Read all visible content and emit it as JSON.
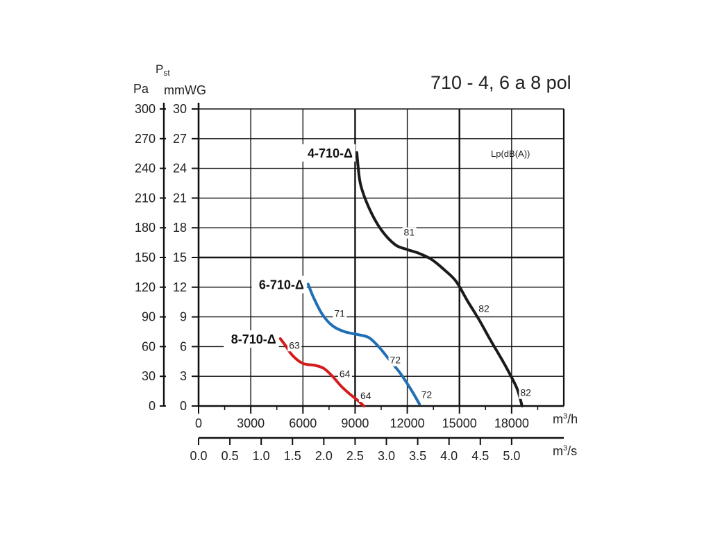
{
  "chart_data": {
    "type": "line",
    "title": "710 - 4, 6 a 8 pol",
    "y_axis": {
      "symbol": "P",
      "subscript": "st",
      "pa_label": "Pa",
      "mmwg_label": "mmWG",
      "pa_ticks": [
        "300",
        "270",
        "240",
        "210",
        "180",
        "150",
        "120",
        "90",
        "60",
        "30",
        "0"
      ],
      "mmwg_ticks": [
        "30",
        "27",
        "24",
        "21",
        "18",
        "15",
        "12",
        "9",
        "6",
        "3",
        "0"
      ],
      "ylim": [
        0,
        30
      ]
    },
    "x_axis": {
      "unit_base": "m",
      "unit_sup": "3",
      "unit_h_suffix": "/h",
      "unit_s_suffix": "/s",
      "ticks_h": [
        "0",
        "3000",
        "6000",
        "9000",
        "12000",
        "15000",
        "18000"
      ],
      "ticks_s": [
        "0.0",
        "0.5",
        "1.0",
        "1.5",
        "2.0",
        "2.5",
        "3.0",
        "3.5",
        "4.0",
        "4.5",
        "5.0"
      ],
      "xlim": [
        0,
        21000
      ]
    },
    "noise_label": "Lp(dB(A))",
    "grid": true,
    "series": [
      {
        "name": "4-710-Δ",
        "color": "#1a1a1a",
        "points": [
          [
            9100,
            25.6
          ],
          [
            9300,
            22.5
          ],
          [
            9800,
            20.0
          ],
          [
            10500,
            17.8
          ],
          [
            11300,
            16.3
          ],
          [
            12000,
            15.8
          ],
          [
            12700,
            15.4
          ],
          [
            13400,
            14.8
          ],
          [
            14100,
            13.8
          ],
          [
            14800,
            12.6
          ],
          [
            15500,
            10.5
          ],
          [
            16100,
            8.8
          ],
          [
            16800,
            6.6
          ],
          [
            17600,
            4.2
          ],
          [
            18300,
            1.8
          ],
          [
            18600,
            0
          ]
        ],
        "noise": [
          {
            "text": "81",
            "x": 11800,
            "y": 17.2
          },
          {
            "text": "82",
            "x": 16100,
            "y": 9.5
          },
          {
            "text": "82",
            "x": 18500,
            "y": 1.0
          }
        ]
      },
      {
        "name": "6-710-Δ",
        "color": "#1e6fb4",
        "points": [
          [
            6300,
            12.3
          ],
          [
            6600,
            11.0
          ],
          [
            7100,
            9.3
          ],
          [
            7700,
            8.1
          ],
          [
            8400,
            7.5
          ],
          [
            9200,
            7.2
          ],
          [
            9800,
            6.9
          ],
          [
            10400,
            5.9
          ],
          [
            11000,
            4.6
          ],
          [
            11600,
            3.3
          ],
          [
            12200,
            1.7
          ],
          [
            12700,
            0.2
          ]
        ],
        "noise": [
          {
            "text": "71",
            "x": 7800,
            "y": 9.0
          },
          {
            "text": "72",
            "x": 11000,
            "y": 4.3
          },
          {
            "text": "72",
            "x": 12800,
            "y": 0.8
          }
        ]
      },
      {
        "name": "8-710-Δ",
        "color": "#d41c1c",
        "points": [
          [
            4700,
            6.8
          ],
          [
            5000,
            6.1
          ],
          [
            5400,
            5.1
          ],
          [
            6000,
            4.3
          ],
          [
            6700,
            4.1
          ],
          [
            7200,
            3.8
          ],
          [
            7700,
            3.0
          ],
          [
            8200,
            2.0
          ],
          [
            8700,
            1.2
          ],
          [
            9200,
            0.5
          ],
          [
            9500,
            0
          ]
        ],
        "noise": [
          {
            "text": "63",
            "x": 5200,
            "y": 5.8
          },
          {
            "text": "64",
            "x": 8100,
            "y": 2.9
          },
          {
            "text": "64",
            "x": 9300,
            "y": 0.7
          }
        ]
      }
    ]
  }
}
